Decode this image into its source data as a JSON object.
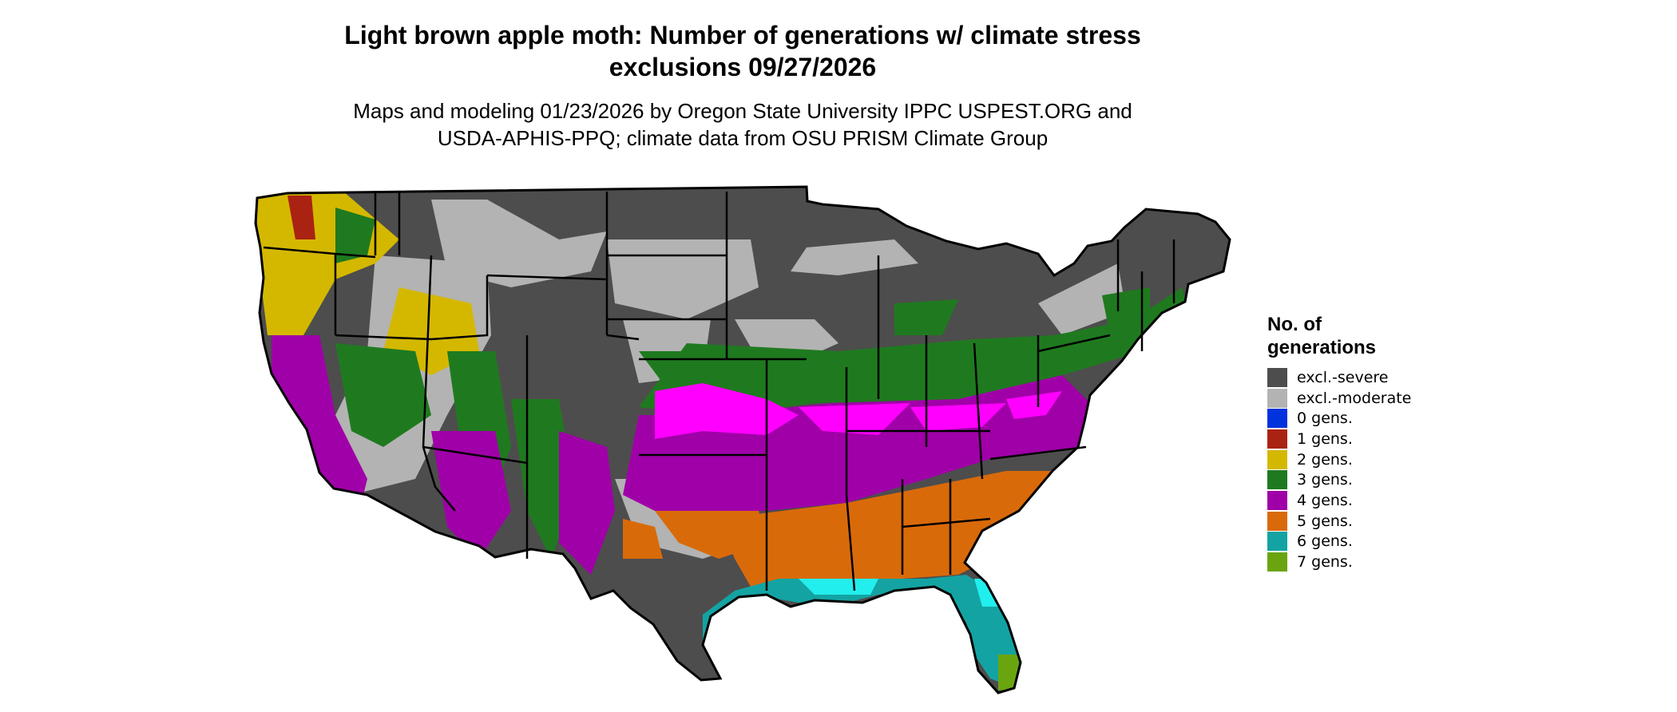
{
  "map": {
    "title_line1": "Light brown apple moth: Number of generations w/ climate stress",
    "title_line2": "exclusions 09/27/2026",
    "subtitle_line1": "Maps and modeling 01/23/2026 by Oregon State University IPPC USPEST.ORG and",
    "subtitle_line2": "USDA-APHIS-PPQ; climate data from OSU PRISM Climate Group",
    "region": "Contiguous United States"
  },
  "legend": {
    "title_line1": "No. of",
    "title_line2": "generations",
    "items": [
      {
        "label": "excl.-severe",
        "color": "#4d4d4d"
      },
      {
        "label": "excl.-moderate",
        "color": "#b3b3b3"
      },
      {
        "label": "0 gens.",
        "color": "#0033dd"
      },
      {
        "label": "1 gens.",
        "color": "#aa2211"
      },
      {
        "label": "2 gens.",
        "color": "#d4b800"
      },
      {
        "label": "3 gens.",
        "color": "#1f7a1f"
      },
      {
        "label": "4 gens.",
        "color": "#a000a8"
      },
      {
        "label": "5 gens.",
        "color": "#d96a0a"
      },
      {
        "label": "6 gens.",
        "color": "#14a3a3"
      },
      {
        "label": "7 gens.",
        "color": "#6aa510"
      }
    ]
  }
}
